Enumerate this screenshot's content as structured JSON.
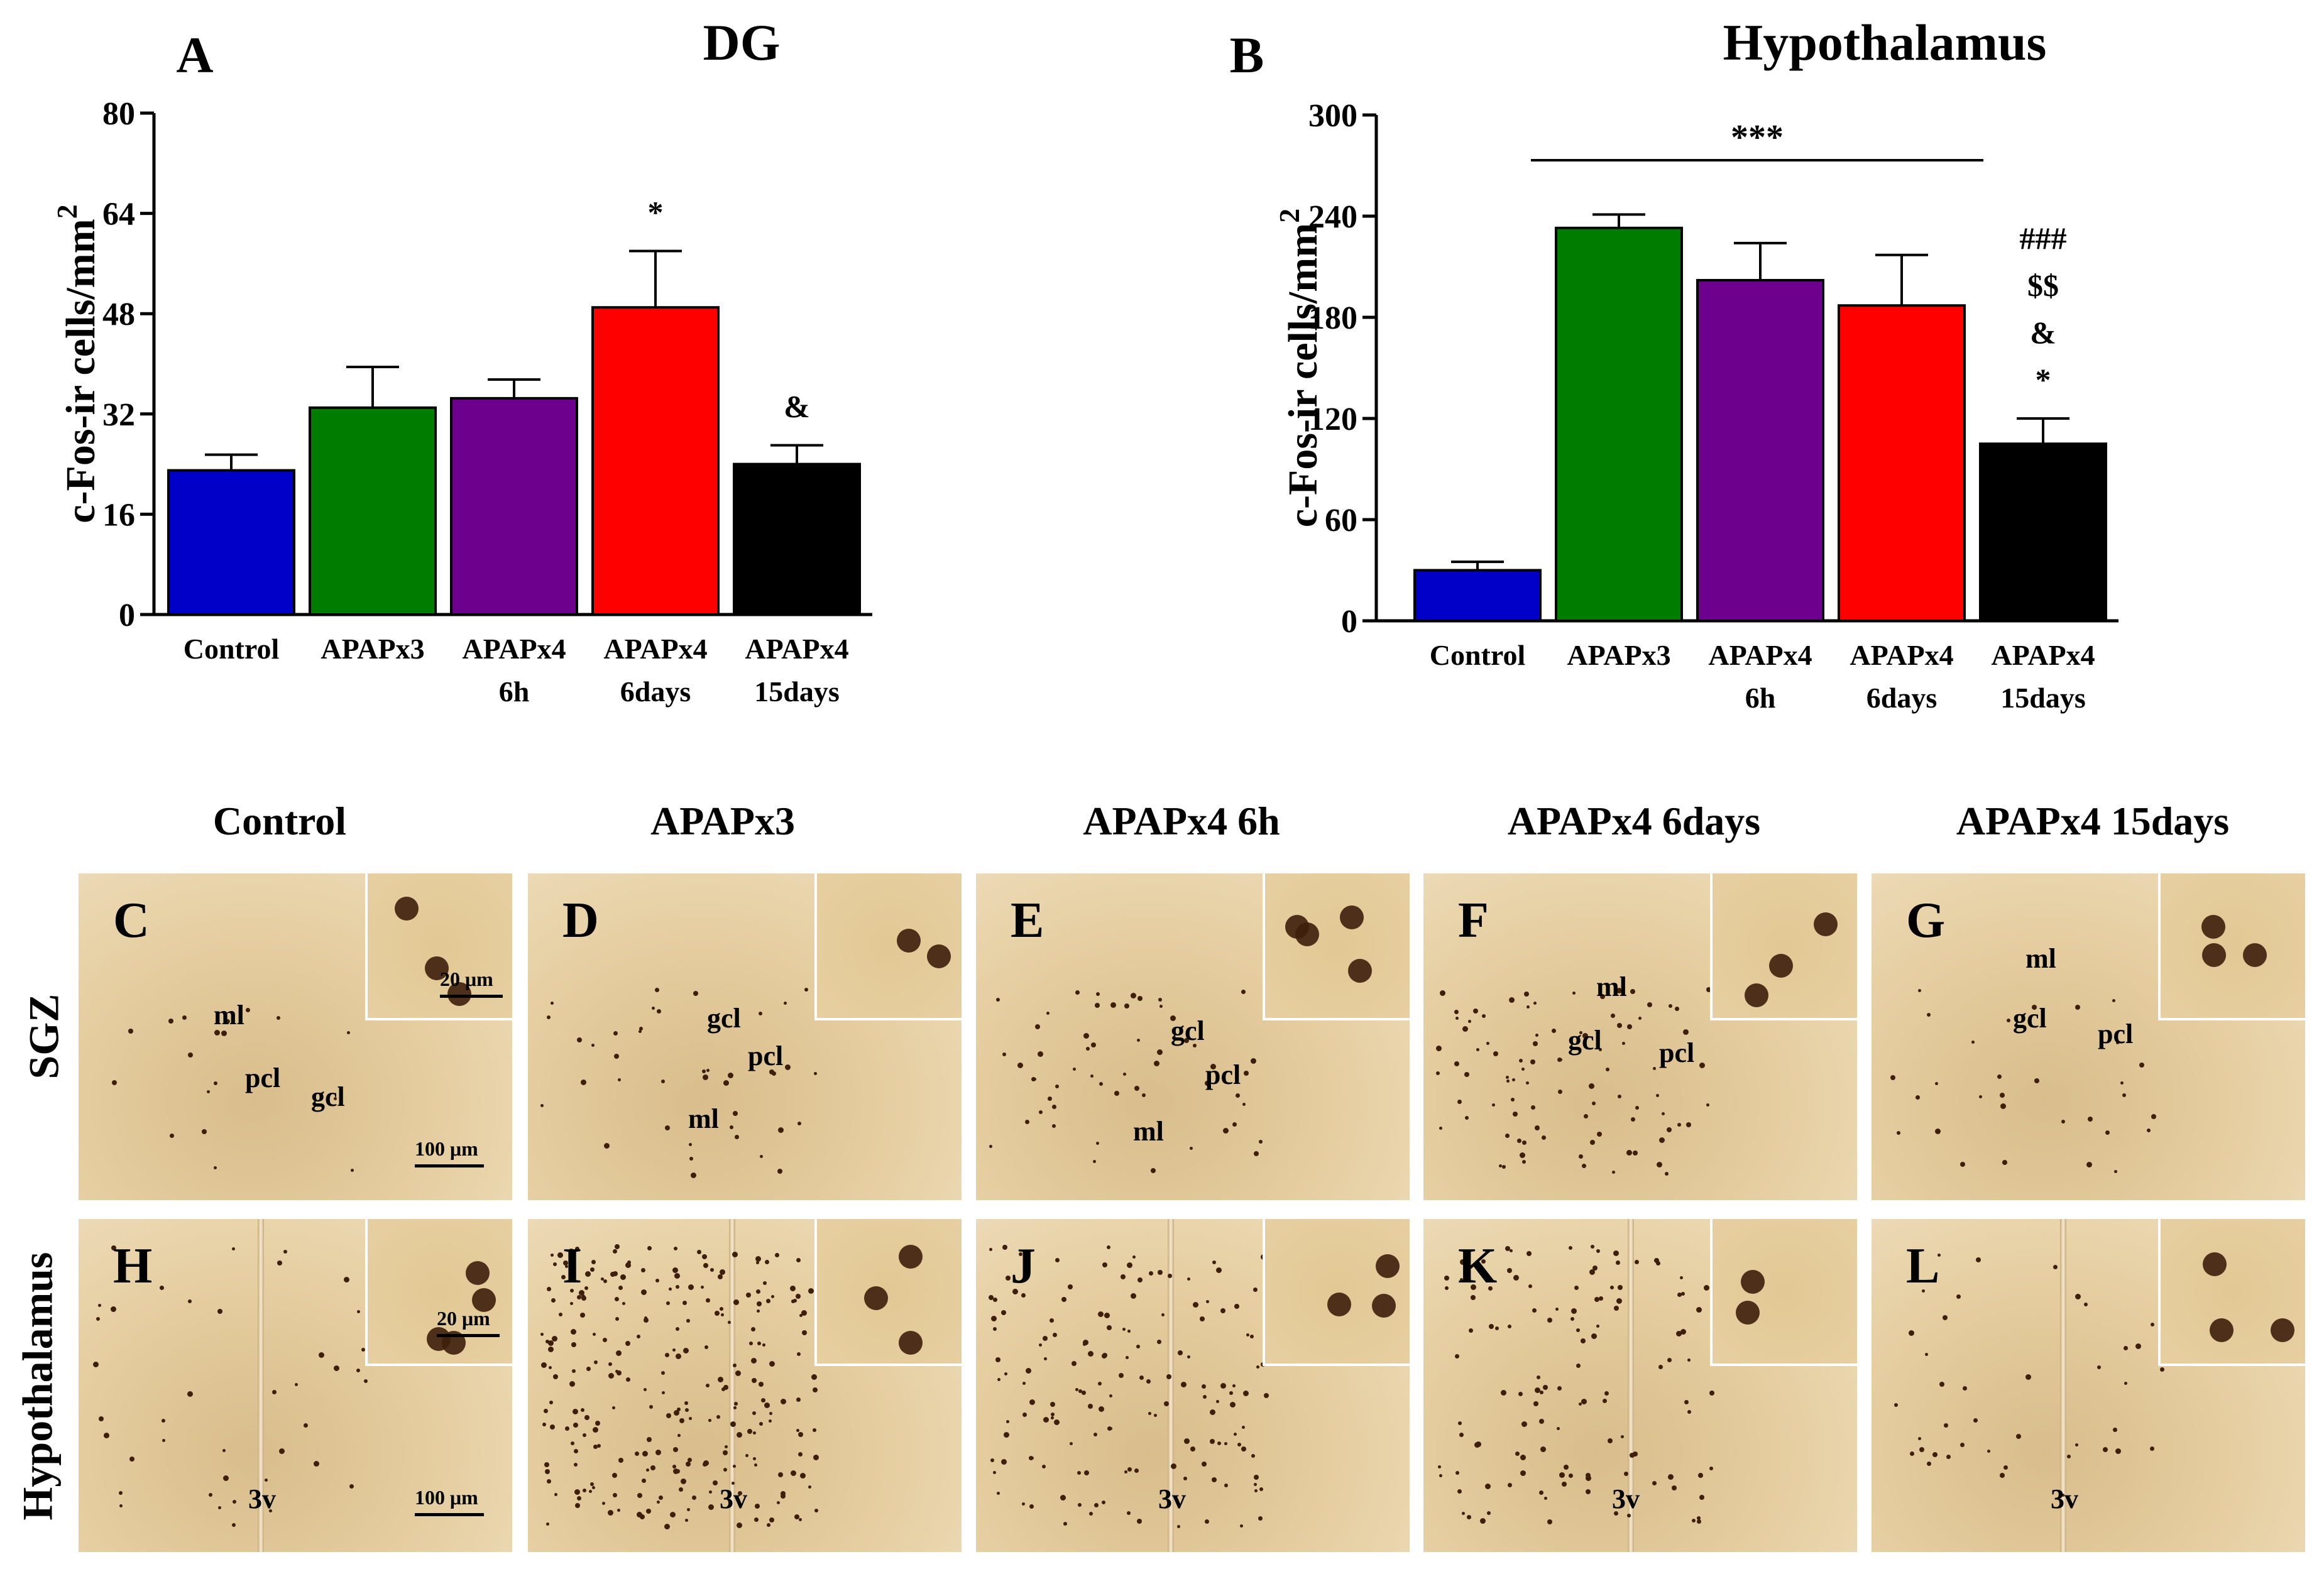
{
  "chart_data": [
    {
      "type": "bar",
      "panel_letter": "A",
      "title": "DG",
      "ylabel": "c-Fos-ir cells/mm",
      "ylabel_sup": "2",
      "categories": [
        [
          "Control"
        ],
        [
          "APAPx3"
        ],
        [
          "APAPx4",
          "6h"
        ],
        [
          "APAPx4",
          "6days"
        ],
        [
          "APAPx4",
          "15days"
        ]
      ],
      "values": [
        23,
        33,
        34.5,
        49,
        24
      ],
      "errors": [
        2.5,
        6.5,
        3,
        9,
        3
      ],
      "colors": [
        "#0000c8",
        "#007c00",
        "#6e008e",
        "#ff0000",
        "#000000"
      ],
      "annotations": [
        "",
        "",
        "",
        "*",
        "&"
      ],
      "ylim": [
        0,
        80
      ],
      "yticks": [
        "0",
        "16",
        "32",
        "48",
        "64",
        "80"
      ],
      "significance_line": null
    },
    {
      "type": "bar",
      "panel_letter": "B",
      "title": "Hypothalamus",
      "ylabel": "c-Fos-ir cells/mm",
      "ylabel_sup": "2",
      "categories": [
        [
          "Control"
        ],
        [
          "APAPx3"
        ],
        [
          "APAPx4",
          "6h"
        ],
        [
          "APAPx4",
          "6days"
        ],
        [
          "APAPx4",
          "15days"
        ]
      ],
      "values": [
        30,
        233,
        202,
        187,
        105
      ],
      "errors": [
        5,
        8,
        22,
        30,
        15
      ],
      "colors": [
        "#0000c8",
        "#007c00",
        "#6e008e",
        "#ff0000",
        "#000000"
      ],
      "annotations": [
        "",
        "",
        "",
        "",
        "###|$$|&|*"
      ],
      "ylim": [
        0,
        300
      ],
      "yticks": [
        "0",
        "60",
        "120",
        "180",
        "240",
        "300"
      ],
      "significance_line": {
        "from": 1,
        "to": 3,
        "label": "***"
      }
    }
  ],
  "micrographs": {
    "column_headers": [
      "Control",
      "APAPx3",
      "APAPx4 6h",
      "APAPx4 6days",
      "APAPx4 15days"
    ],
    "row_headers": [
      "SGZ",
      "Hypothalamus"
    ],
    "sgz_panels": [
      {
        "letter": "C",
        "labels": [
          "ml",
          "pcl",
          "gcl"
        ],
        "scale_large": "100 μm",
        "scale_small": "20 μm"
      },
      {
        "letter": "D",
        "labels": [
          "gcl",
          "pcl",
          "ml"
        ]
      },
      {
        "letter": "E",
        "labels": [
          "gcl",
          "pcl",
          "ml"
        ]
      },
      {
        "letter": "F",
        "labels": [
          "ml",
          "gcl",
          "pcl"
        ]
      },
      {
        "letter": "G",
        "labels": [
          "ml",
          "gcl",
          "pcl"
        ]
      }
    ],
    "hyp_panels": [
      {
        "letter": "H",
        "labels": [
          "3v"
        ],
        "scale_large": "100 μm",
        "scale_small": "20 μm"
      },
      {
        "letter": "I",
        "labels": [
          "3v"
        ]
      },
      {
        "letter": "J",
        "labels": [
          "3v"
        ]
      },
      {
        "letter": "K",
        "labels": [
          "3v"
        ]
      },
      {
        "letter": "L",
        "labels": [
          "3v"
        ]
      }
    ],
    "tissue_color": "#e6cfa2",
    "stain_color": "#3d1f0c"
  }
}
